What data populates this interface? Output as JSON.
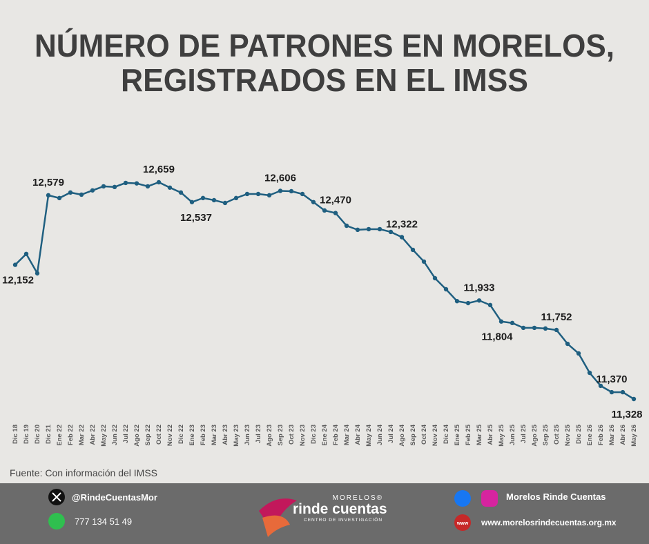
{
  "chart_data": {
    "type": "line",
    "title_lines": [
      "NÚMERO DE PATRONES EN MORELOS,",
      "REGISTRADOS EN EL IMSS"
    ],
    "categories": [
      "Dic 18",
      "Dic 19",
      "Dic 20",
      "Dic 21",
      "Ene 22",
      "Feb 22",
      "Mar 22",
      "Abr 22",
      "May 22",
      "Jun 22",
      "Jul 22",
      "Ago 22",
      "Sep 22",
      "Oct 22",
      "Nov 22",
      "Dic 22",
      "Ene 23",
      "Feb 23",
      "Mar 23",
      "Abr 23",
      "May 23",
      "Jun 23",
      "Jul 23",
      "Ago 23",
      "Sep 23",
      "Oct 23",
      "Nov 23",
      "Dic 23",
      "Ene 24",
      "Feb 24",
      "Mar 24",
      "Abr 24",
      "May 24",
      "Jun 24",
      "Jul 24",
      "Ago 24",
      "Sep 24",
      "Oct 24",
      "Nov 24",
      "Dic 24",
      "Ene 25",
      "Feb 25",
      "Mar 25",
      "Abr 25",
      "May 25",
      "Jun 25",
      "Jul 25",
      "Ago 25",
      "Sep 25",
      "Oct 25",
      "Nov 25",
      "Dic 25",
      "Ene 26",
      "Feb 26",
      "Mar 26",
      "Abr 26",
      "May 26"
    ],
    "values": [
      12152,
      12219,
      12100,
      12579,
      12562,
      12596,
      12583,
      12609,
      12634,
      12630,
      12655,
      12652,
      12634,
      12659,
      12626,
      12596,
      12537,
      12562,
      12549,
      12532,
      12562,
      12587,
      12587,
      12579,
      12606,
      12604,
      12587,
      12537,
      12486,
      12470,
      12392,
      12367,
      12371,
      12371,
      12354,
      12322,
      12244,
      12172,
      12070,
      12002,
      11929,
      11917,
      11933,
      11905,
      11804,
      11795,
      11765,
      11765,
      11761,
      11752,
      11667,
      11608,
      11489,
      11409,
      11370,
      11370,
      11328
    ],
    "value_labels": [
      "12,152",
      null,
      null,
      "12,579",
      null,
      null,
      null,
      null,
      null,
      null,
      null,
      null,
      null,
      "12,659",
      null,
      null,
      "12,537",
      null,
      null,
      null,
      null,
      null,
      null,
      null,
      "12,606",
      null,
      null,
      null,
      null,
      "12,470",
      null,
      null,
      null,
      null,
      null,
      "12,322",
      null,
      null,
      null,
      null,
      null,
      null,
      "11,933",
      null,
      "11,804",
      null,
      null,
      null,
      null,
      "11,752",
      null,
      null,
      null,
      null,
      "11,370",
      null,
      "11,328"
    ],
    "color": "#1f5f80",
    "source": "Fuente: Con información del IMSS"
  },
  "footer": {
    "twitter": "@RindeCuentasMor",
    "phone": "777 134 51 49",
    "logo_top": "MORELOS®",
    "logo_main": "rinde cuentas",
    "logo_sub": "CENTRO DE INVESTIGACIÓN",
    "social": "Morelos Rinde Cuentas",
    "web_icon": "www",
    "website": "www.morelosrindecuentas.org.mx"
  }
}
